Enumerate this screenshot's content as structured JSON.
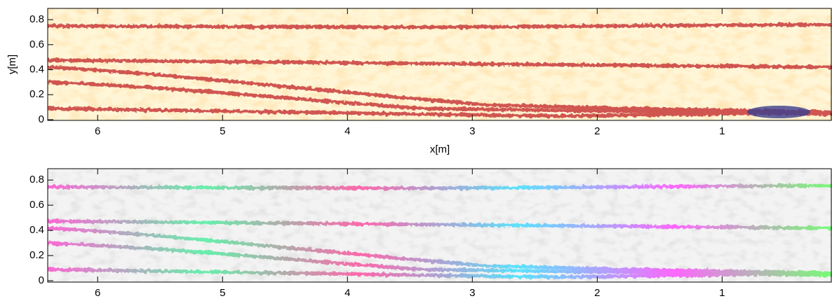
{
  "chart_data": [
    {
      "type": "heatmap",
      "xlabel": "x[m]",
      "ylabel": "y[m]",
      "xlim": [
        6.4,
        0.12
      ],
      "ylim": [
        0,
        0.89
      ],
      "xticks": [
        6,
        5,
        4,
        3,
        2,
        1
      ],
      "yticks": [
        0,
        0.2,
        0.4,
        0.6,
        0.8
      ]
    },
    {
      "type": "heatmap",
      "xlim": [
        6.4,
        0.12
      ],
      "ylim": [
        0,
        0.89
      ],
      "xticks": [
        6,
        5,
        4,
        3,
        2,
        1
      ],
      "yticks": [
        0,
        0.2,
        0.4,
        0.6,
        0.8
      ]
    }
  ]
}
